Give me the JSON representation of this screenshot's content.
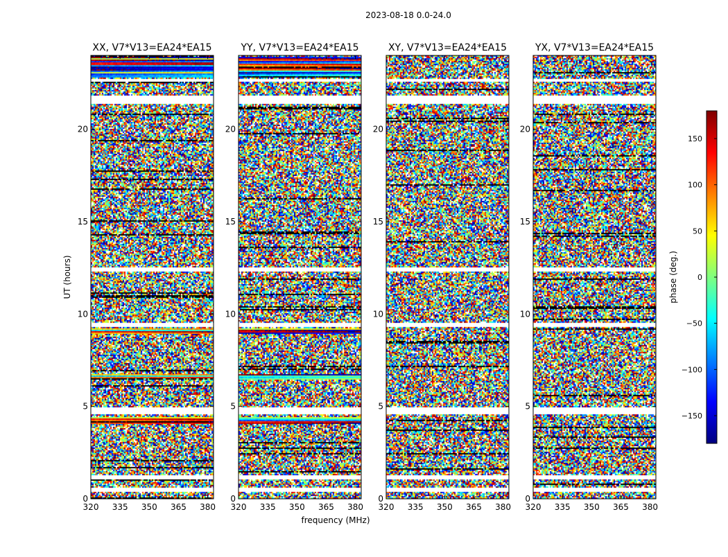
{
  "figure_title": "2023-08-18 0.0-24.0",
  "chart_data": {
    "type": "heatmap",
    "ylabel": "UT (hours)",
    "xlabel": "frequency (MHz)",
    "xlim": [
      320,
      383
    ],
    "ylim": [
      0,
      24
    ],
    "x_ticks": [
      320,
      335,
      350,
      365,
      380
    ],
    "y_ticks": [
      0,
      5,
      10,
      15,
      20
    ],
    "panels": [
      {
        "title": "XX, V7*V13=EA24*EA15",
        "pol": "XX"
      },
      {
        "title": "YY, V7*V13=EA24*EA15",
        "pol": "YY"
      },
      {
        "title": "XY, V7*V13=EA24*EA15",
        "pol": "XY"
      },
      {
        "title": "YX, V7*V13=EA24*EA15",
        "pol": "YX"
      }
    ],
    "colorbar": {
      "label": "phase (deg.)",
      "range": [
        -180,
        180
      ],
      "ticks": [
        150,
        100,
        50,
        0,
        -50,
        -100,
        -150
      ],
      "colormap": "jet"
    },
    "flagged_gaps_hours": [
      [
        0.45,
        0.65
      ],
      [
        1.1,
        1.3
      ],
      [
        4.6,
        5.0
      ],
      [
        9.35,
        9.55
      ],
      [
        12.35,
        12.55
      ],
      [
        21.4,
        21.9
      ],
      [
        22.6,
        22.75
      ]
    ],
    "coherent_rows_hours": [
      [
        6.5,
        6.8
      ],
      [
        9.0,
        9.25
      ],
      [
        4.1,
        4.5
      ],
      [
        22.85,
        24.0
      ]
    ]
  }
}
